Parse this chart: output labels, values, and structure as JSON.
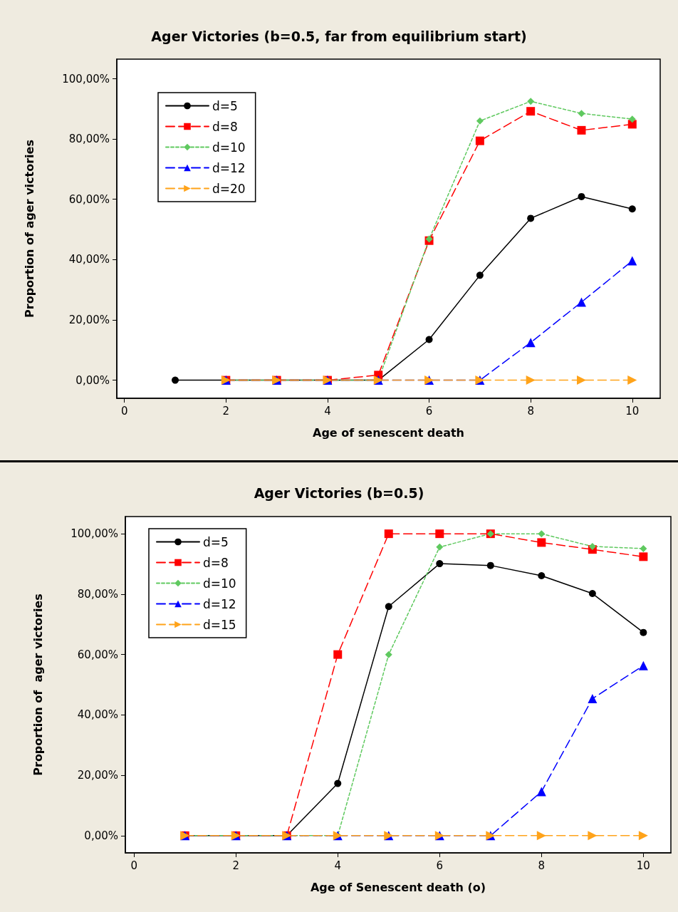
{
  "chart_data": [
    {
      "type": "line",
      "title": "Ager Victories (b=0.5, far from equilibrium start)",
      "xlabel": "Age of senescent death",
      "ylabel": "Proportion of ager victories",
      "xlim": [
        -0.15,
        10.55
      ],
      "xticks": [
        0,
        2,
        4,
        6,
        8,
        10
      ],
      "ylim": [
        -6,
        106.5
      ],
      "yticks": [
        {
          "value": 0,
          "label": "0,00%"
        },
        {
          "value": 20,
          "label": "20,00%"
        },
        {
          "value": 40,
          "label": "40,00%"
        },
        {
          "value": 60,
          "label": "60,00%"
        },
        {
          "value": 80,
          "label": "80,00%"
        },
        {
          "value": 100,
          "label": "100,00%"
        }
      ],
      "grid": false,
      "legend": "top left",
      "series": [
        {
          "name": "d=5",
          "color": "#000000",
          "marker": "circle",
          "line_style": "solid",
          "x": [
            1,
            2,
            3,
            4,
            5,
            6,
            7,
            8,
            9,
            10
          ],
          "values": [
            0,
            0,
            0,
            0,
            0,
            13.5,
            34.8,
            53.7,
            60.9,
            56.8
          ]
        },
        {
          "name": "d=8",
          "color": "#ff0000",
          "marker": "square",
          "line_style": "dashed",
          "x": [
            2,
            3,
            4,
            5,
            6,
            7,
            8,
            9,
            10
          ],
          "values": [
            0,
            0,
            0,
            1.7,
            46.3,
            79.4,
            89.2,
            82.9,
            84.9
          ]
        },
        {
          "name": "d=10",
          "color": "#5fc95f",
          "marker": "diamond",
          "line_style": "dotted",
          "x": [
            2,
            3,
            4,
            5,
            6,
            7,
            8,
            9,
            10
          ],
          "values": [
            0,
            0,
            0,
            0,
            46.8,
            86.0,
            92.5,
            88.5,
            86.6
          ]
        },
        {
          "name": "d=12",
          "color": "#0000ff",
          "marker": "triangle",
          "line_style": "dashed",
          "x": [
            2,
            3,
            4,
            5,
            6,
            7,
            8,
            9,
            10
          ],
          "values": [
            0,
            0,
            0,
            0,
            0,
            0,
            12.5,
            25.9,
            39.6
          ]
        },
        {
          "name": "d=20",
          "color": "#ffa31a",
          "marker": "triangle-right",
          "line_style": "dashed",
          "x": [
            2,
            3,
            4,
            5,
            6,
            7,
            8,
            9,
            10
          ],
          "values": [
            0,
            0,
            0,
            0,
            0,
            0,
            0,
            0,
            0
          ]
        }
      ]
    },
    {
      "type": "line",
      "title": "Ager Victories (b=0.5)",
      "xlabel": "Age of Senescent death (o)",
      "ylabel": "Proportion of  ager victories",
      "xlim": [
        -0.17,
        10.54
      ],
      "xticks": [
        0,
        2,
        4,
        6,
        8,
        10
      ],
      "ylim": [
        -5.7,
        105.7
      ],
      "yticks": [
        {
          "value": 0,
          "label": "0,00%"
        },
        {
          "value": 20,
          "label": "20,00%"
        },
        {
          "value": 40,
          "label": "40,00%"
        },
        {
          "value": 60,
          "label": "60,00%"
        },
        {
          "value": 80,
          "label": "80,00%"
        },
        {
          "value": 100,
          "label": "100,00%"
        }
      ],
      "grid": false,
      "legend": "top left",
      "series": [
        {
          "name": "d=5",
          "color": "#000000",
          "marker": "circle",
          "line_style": "solid",
          "x": [
            1,
            2,
            3,
            4,
            5,
            6,
            7,
            8,
            9,
            10
          ],
          "values": [
            0,
            0,
            0,
            17.3,
            75.9,
            90.1,
            89.5,
            86.1,
            80.2,
            67.3
          ]
        },
        {
          "name": "d=8",
          "color": "#ff0000",
          "marker": "square",
          "line_style": "dashed",
          "x": [
            1,
            2,
            3,
            4,
            5,
            6,
            7,
            8,
            9,
            10
          ],
          "values": [
            0,
            0,
            0,
            60,
            100,
            100,
            100,
            97.1,
            94.8,
            92.4
          ]
        },
        {
          "name": "d=10",
          "color": "#5fc95f",
          "marker": "diamond",
          "line_style": "dotted",
          "x": [
            1,
            2,
            3,
            4,
            5,
            6,
            7,
            8,
            9,
            10
          ],
          "values": [
            0,
            0,
            0,
            0,
            60,
            95.6,
            100,
            100,
            95.8,
            95.1
          ]
        },
        {
          "name": "d=12",
          "color": "#0000ff",
          "marker": "triangle",
          "line_style": "dashed",
          "x": [
            1,
            2,
            3,
            4,
            5,
            6,
            7,
            8,
            9,
            10
          ],
          "values": [
            0,
            0,
            0,
            0,
            0,
            0,
            0,
            14.6,
            45.4,
            56.3
          ]
        },
        {
          "name": "d=15",
          "color": "#ffa31a",
          "marker": "triangle-right",
          "line_style": "dashed",
          "x": [
            1,
            2,
            3,
            4,
            5,
            6,
            7,
            8,
            9,
            10
          ],
          "values": [
            0,
            0,
            0,
            0,
            0,
            0,
            0,
            0,
            0,
            0
          ]
        }
      ]
    }
  ]
}
